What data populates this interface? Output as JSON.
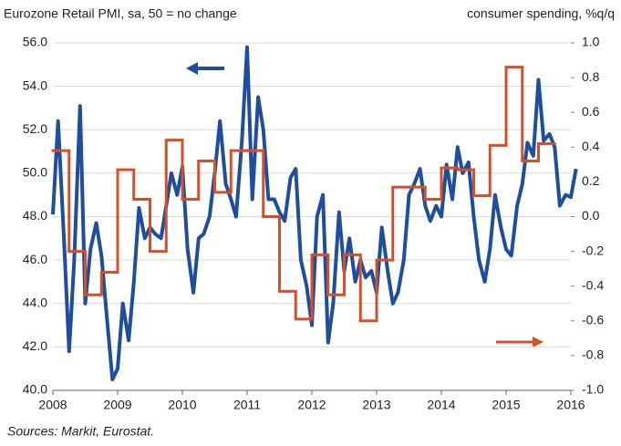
{
  "chart_data": {
    "type": "line",
    "title": "Eurozone Retail PMI, sa, 50 = no change",
    "y2_label": "consumer spending, %q/q",
    "source": "Sources: Markit, Eurostat.",
    "xlim": [
      2008,
      2016
    ],
    "xticks": [
      2008,
      2009,
      2010,
      2011,
      2012,
      2013,
      2014,
      2015,
      2016
    ],
    "ylim": [
      40,
      56
    ],
    "yticks": [
      {
        "value": 40,
        "label": "40.0"
      },
      {
        "value": 42,
        "label": "42.0"
      },
      {
        "value": 44,
        "label": "44.0"
      },
      {
        "value": 46,
        "label": "46.0"
      },
      {
        "value": 48,
        "label": "48.0"
      },
      {
        "value": 50,
        "label": "50.0"
      },
      {
        "value": 52,
        "label": "52.0"
      },
      {
        "value": 54,
        "label": "54.0"
      },
      {
        "value": 56,
        "label": "56.0"
      }
    ],
    "y2lim": [
      -1,
      1
    ],
    "y2ticks": [
      {
        "value": -1,
        "label": "-1.0"
      },
      {
        "value": -0.8,
        "label": "-0.8"
      },
      {
        "value": -0.6,
        "label": "-0.6"
      },
      {
        "value": -0.4,
        "label": "-0.4"
      },
      {
        "value": -0.2,
        "label": "-0.2"
      },
      {
        "value": 0,
        "label": "0.0"
      },
      {
        "value": 0.2,
        "label": "0.2"
      },
      {
        "value": 0.4,
        "label": "0.4"
      },
      {
        "value": 0.6,
        "label": "0.6"
      },
      {
        "value": 0.8,
        "label": "0.8"
      },
      {
        "value": 1,
        "label": "1.0"
      }
    ],
    "grid": true,
    "series": [
      {
        "color": "#1f4e9c",
        "axis": "y",
        "x": [
          2008.0,
          2008.08,
          2008.17,
          2008.25,
          2008.33,
          2008.42,
          2008.5,
          2008.58,
          2008.67,
          2008.75,
          2008.83,
          2008.92,
          2009.0,
          2009.08,
          2009.17,
          2009.25,
          2009.33,
          2009.42,
          2009.5,
          2009.58,
          2009.67,
          2009.75,
          2009.83,
          2009.92,
          2010.0,
          2010.08,
          2010.17,
          2010.25,
          2010.33,
          2010.42,
          2010.5,
          2010.58,
          2010.67,
          2010.75,
          2010.83,
          2010.92,
          2011.0,
          2011.08,
          2011.17,
          2011.25,
          2011.33,
          2011.42,
          2011.5,
          2011.58,
          2011.67,
          2011.75,
          2011.83,
          2011.92,
          2012.0,
          2012.08,
          2012.17,
          2012.25,
          2012.33,
          2012.42,
          2012.5,
          2012.58,
          2012.67,
          2012.75,
          2012.83,
          2012.92,
          2013.0,
          2013.08,
          2013.17,
          2013.25,
          2013.33,
          2013.42,
          2013.5,
          2013.58,
          2013.67,
          2013.75,
          2013.83,
          2013.92,
          2014.0,
          2014.08,
          2014.17,
          2014.25,
          2014.33,
          2014.42,
          2014.5,
          2014.58,
          2014.67,
          2014.75,
          2014.83,
          2014.92,
          2015.0,
          2015.08,
          2015.17,
          2015.25,
          2015.33,
          2015.42,
          2015.5,
          2015.58,
          2015.67,
          2015.75,
          2015.83,
          2015.92,
          2016.0,
          2016.08
        ],
        "values": [
          48.1,
          52.4,
          47,
          41.8,
          46,
          53.1,
          44,
          46.5,
          47.7,
          46.2,
          43.5,
          40.5,
          41,
          44,
          42.3,
          45,
          48.4,
          47,
          47.5,
          47.2,
          47,
          48.5,
          50,
          49,
          50.3,
          46.5,
          44.5,
          47,
          47.2,
          48,
          50,
          52.4,
          49.5,
          48.8,
          48,
          51.5,
          55.8,
          48.8,
          53.5,
          52,
          48.8,
          48.8,
          48.2,
          47.8,
          49.8,
          50.2,
          46,
          44.8,
          43,
          48,
          49,
          42.2,
          44,
          48.2,
          45.5,
          47,
          45,
          46,
          45.2,
          45.5,
          44.5,
          47.5,
          45.5,
          44,
          44.5,
          46,
          49,
          49.5,
          50.2,
          48.5,
          47.8,
          48.5,
          48,
          50.4,
          48.8,
          51.2,
          50,
          50.5,
          48,
          46,
          45,
          46.5,
          49,
          47.5,
          46.5,
          46.2,
          48.5,
          49.5,
          51.4,
          50.8,
          54.3,
          51.5,
          51.8,
          51.2,
          48.5,
          49,
          48.9,
          50.2
        ]
      },
      {
        "color": "#d2502a",
        "axis": "y2",
        "step": "post",
        "step_width": 0.25,
        "x": [
          2008.0,
          2008.25,
          2008.5,
          2008.75,
          2009.0,
          2009.25,
          2009.5,
          2009.75,
          2010.0,
          2010.25,
          2010.5,
          2010.75,
          2011.0,
          2011.25,
          2011.5,
          2011.75,
          2012.0,
          2012.25,
          2012.5,
          2012.75,
          2013.0,
          2013.25,
          2013.5,
          2013.75,
          2014.0,
          2014.25,
          2014.5,
          2014.75,
          2015.0,
          2015.25,
          2015.5
        ],
        "values": [
          0.38,
          -0.2,
          -0.45,
          -0.32,
          0.27,
          0.1,
          -0.2,
          0.44,
          0.1,
          0.32,
          0.14,
          0.38,
          0.38,
          0.0,
          -0.43,
          -0.59,
          -0.22,
          -0.45,
          -0.22,
          -0.6,
          -0.25,
          0.17,
          0.17,
          0.1,
          0.28,
          0.27,
          0.12,
          0.41,
          0.86,
          0.32,
          0.42
        ]
      }
    ]
  }
}
